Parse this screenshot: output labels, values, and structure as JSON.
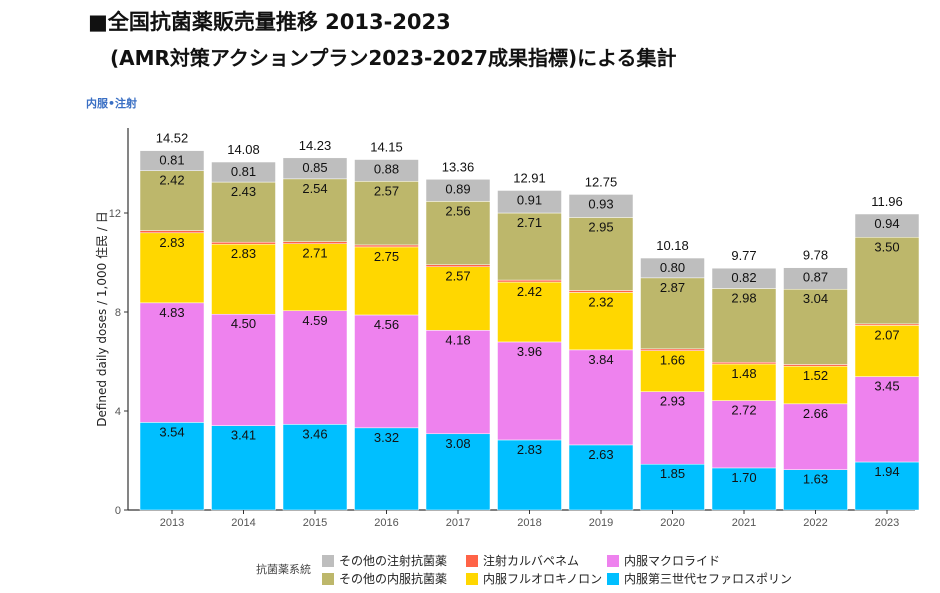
{
  "title": "■全国抗菌薬販売量推移 2013-2023",
  "subtitle": "(AMR対策アクションプラン2023-2027成果指標)による集計",
  "panel_label": "内服•注射",
  "chart_data": {
    "type": "bar",
    "stacked": true,
    "ylabel": "Defined daily doses / 1,000 住民 / 日",
    "xlabel": "",
    "ylim": [
      0,
      15.5
    ],
    "yticks": [
      0,
      4,
      8,
      12
    ],
    "grid": false,
    "legend_title": "抗菌薬系統",
    "legend_position": "bottom",
    "categories": [
      "2013",
      "2014",
      "2015",
      "2016",
      "2017",
      "2018",
      "2019",
      "2020",
      "2021",
      "2022",
      "2023"
    ],
    "totals": [
      "14.52",
      "14.08",
      "14.23",
      "14.15",
      "13.36",
      "12.91",
      "12.75",
      "10.18",
      "9.77",
      "9.78",
      "11.96"
    ],
    "series": [
      {
        "name": "内服第三世代セファロスポリン",
        "color": "#00bfff",
        "values": [
          3.54,
          3.41,
          3.46,
          3.32,
          3.08,
          2.83,
          2.63,
          1.85,
          1.7,
          1.63,
          1.94
        ]
      },
      {
        "name": "内服マクロライド",
        "color": "#ee82ee",
        "values": [
          4.83,
          4.5,
          4.59,
          4.56,
          4.18,
          3.96,
          3.84,
          2.93,
          2.72,
          2.66,
          3.45
        ]
      },
      {
        "name": "内服フルオロキノロン",
        "color": "#ffd700",
        "values": [
          2.83,
          2.83,
          2.71,
          2.75,
          2.57,
          2.42,
          2.32,
          1.66,
          1.48,
          1.52,
          2.07
        ]
      },
      {
        "name": "注射カルバペネム",
        "color": "#ff6347",
        "values": [
          0.09,
          0.08,
          0.08,
          0.08,
          0.08,
          0.08,
          0.08,
          0.07,
          0.07,
          0.07,
          0.06
        ]
      },
      {
        "name": "その他の内服抗菌薬",
        "color": "#bdb76b",
        "values": [
          2.42,
          2.43,
          2.54,
          2.57,
          2.56,
          2.71,
          2.95,
          2.87,
          2.98,
          3.04,
          3.5
        ]
      },
      {
        "name": "その他の注射抗菌薬",
        "color": "#bebebe",
        "values": [
          0.81,
          0.81,
          0.85,
          0.88,
          0.89,
          0.91,
          0.93,
          0.8,
          0.82,
          0.87,
          0.94
        ]
      }
    ],
    "legend_order": [
      "その他の注射抗菌薬",
      "注射カルバペネム",
      "内服マクロライド",
      "その他の内服抗菌薬",
      "内服フルオロキノロン",
      "内服第三世代セファロスポリン"
    ]
  }
}
